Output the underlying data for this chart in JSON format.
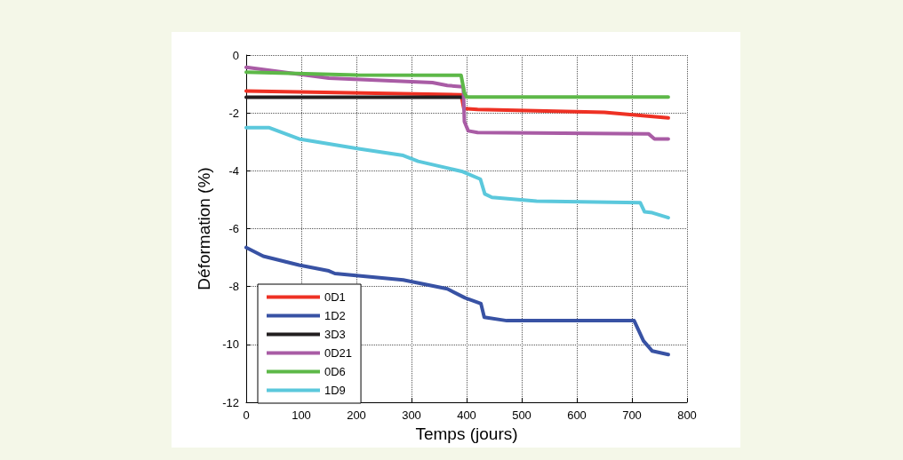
{
  "chart_data": {
    "type": "line",
    "xlabel": "Temps (jours)",
    "ylabel": "Déformation (%)",
    "xlim": [
      0,
      800
    ],
    "xticks": [
      0,
      100,
      200,
      300,
      400,
      500,
      600,
      700,
      800
    ],
    "ylim": [
      -12,
      0
    ],
    "yticks": [
      -12,
      -10,
      -8,
      -6,
      -4,
      -2,
      0
    ],
    "grid": true,
    "legend": "bottom left",
    "line_style": "solid",
    "marker": "none",
    "series": [
      {
        "name": "0D1",
        "color": "#ee3124",
        "x": [
          0,
          390,
          395,
          420,
          650,
          766
        ],
        "values": [
          -1.24,
          -1.37,
          -1.85,
          -1.88,
          -1.98,
          -2.17
        ]
      },
      {
        "name": "1D2",
        "color": "#3852a4",
        "x": [
          0,
          31,
          96,
          150,
          161,
          285,
          365,
          397,
          426,
          432,
          473,
          704,
          721,
          737,
          766
        ],
        "values": [
          -6.65,
          -6.95,
          -7.26,
          -7.46,
          -7.55,
          -7.77,
          -8.08,
          -8.39,
          -8.59,
          -9.06,
          -9.18,
          -9.18,
          -9.88,
          -10.23,
          -10.35
        ]
      },
      {
        "name": "3D3",
        "color": "#231f20",
        "x": [
          0,
          392
        ],
        "values": [
          -1.46,
          -1.46
        ]
      },
      {
        "name": "0D21",
        "color": "#a95ca5",
        "x": [
          0,
          150,
          338,
          365,
          394,
          396,
          403,
          420,
          730,
          741,
          766
        ],
        "values": [
          -0.42,
          -0.8,
          -0.95,
          -1.05,
          -1.1,
          -2.3,
          -2.62,
          -2.68,
          -2.72,
          -2.9,
          -2.9
        ]
      },
      {
        "name": "0D6",
        "color": "#5db848",
        "x": [
          0,
          200,
          390,
          396,
          400,
          766
        ],
        "values": [
          -0.59,
          -0.69,
          -0.7,
          -1.3,
          -1.45,
          -1.45
        ]
      },
      {
        "name": "1D9",
        "color": "#5bc8dc",
        "x": [
          0,
          42,
          96,
          204,
          285,
          312,
          393,
          425,
          433,
          446,
          527,
          715,
          723,
          737,
          766
        ],
        "values": [
          -2.51,
          -2.51,
          -2.9,
          -3.24,
          -3.47,
          -3.67,
          -4.03,
          -4.29,
          -4.8,
          -4.92,
          -5.05,
          -5.1,
          -5.42,
          -5.45,
          -5.62
        ]
      }
    ]
  }
}
